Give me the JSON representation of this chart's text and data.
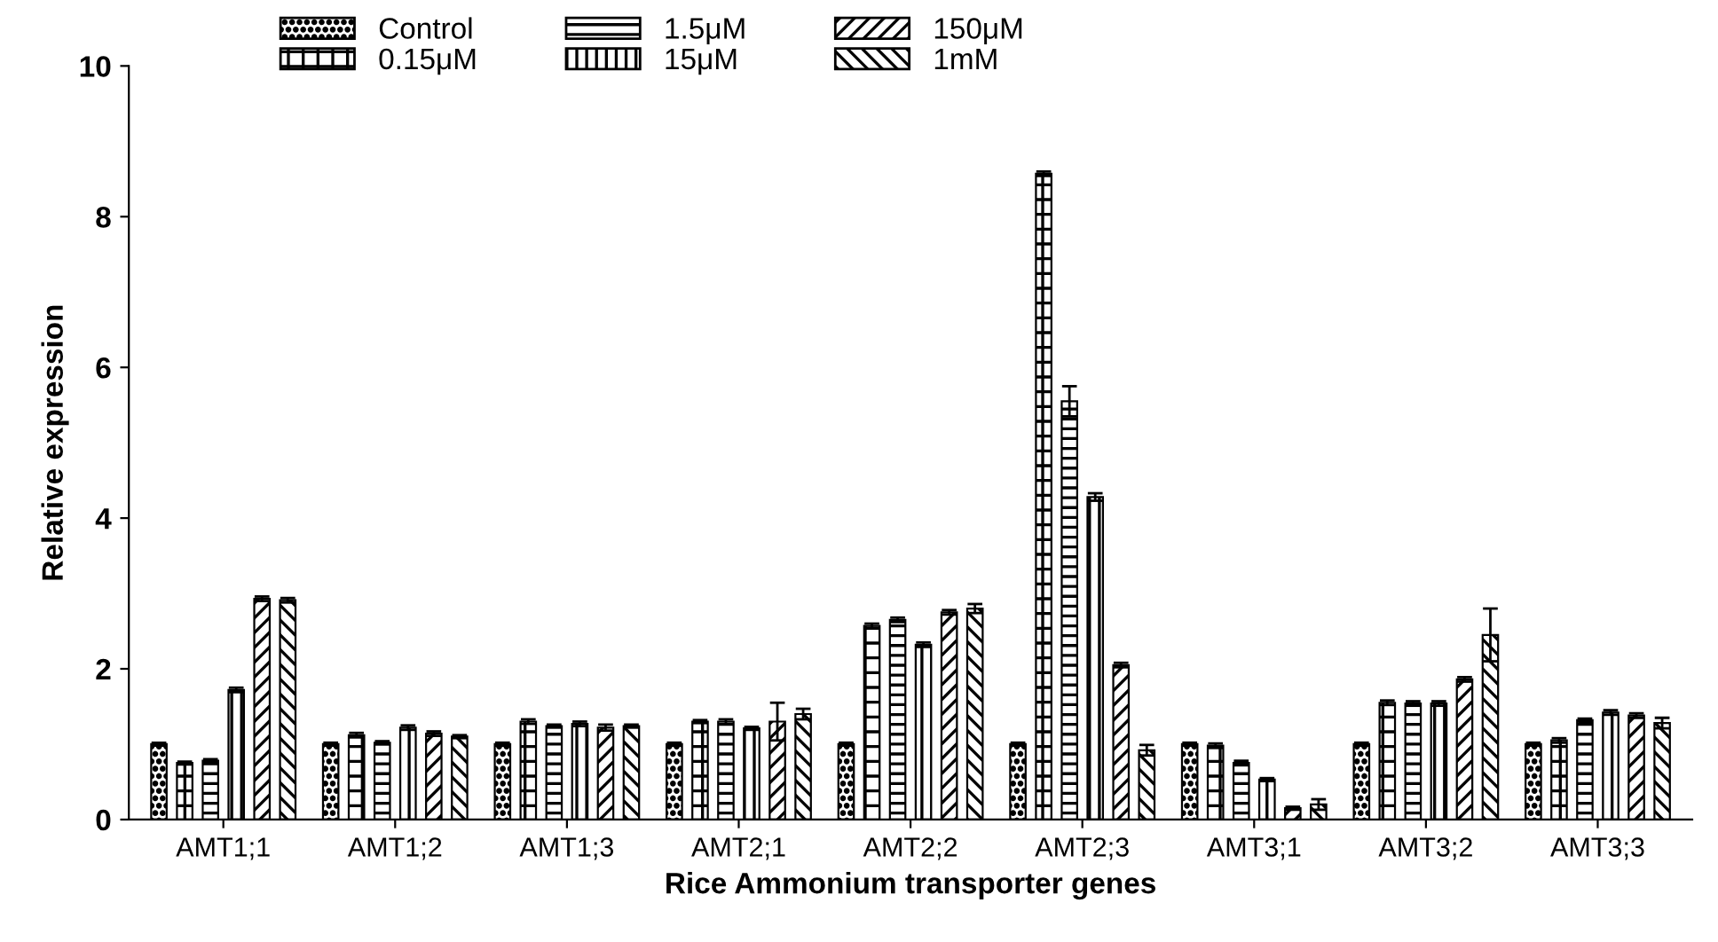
{
  "chart_data": {
    "type": "bar",
    "xlabel": "Rice Ammonium transporter genes",
    "ylabel": "Relative expression",
    "categories": [
      "AMT1;1",
      "AMT1;2",
      "AMT1;3",
      "AMT2;1",
      "AMT2;2",
      "AMT2;3",
      "AMT3;1",
      "AMT3;2",
      "AMT3;3"
    ],
    "series": [
      {
        "name": "Control",
        "color": "#000000",
        "values": [
          1.0,
          1.0,
          1.0,
          1.0,
          1.0,
          1.0,
          1.0,
          1.0,
          1.0
        ],
        "errors": [
          0.02,
          0.02,
          0.02,
          0.02,
          0.02,
          0.02,
          0.02,
          0.02,
          0.02
        ]
      },
      {
        "name": "0.15μM",
        "color": "#000000",
        "values": [
          0.75,
          1.12,
          1.3,
          1.3,
          2.57,
          8.57,
          0.98,
          1.55,
          1.05
        ],
        "errors": [
          0.02,
          0.03,
          0.03,
          0.02,
          0.03,
          0.03,
          0.03,
          0.03,
          0.03
        ]
      },
      {
        "name": "1.5μM",
        "color": "#000000",
        "values": [
          0.78,
          1.02,
          1.24,
          1.3,
          2.65,
          5.55,
          0.75,
          1.54,
          1.32
        ],
        "errors": [
          0.02,
          0.02,
          0.02,
          0.03,
          0.03,
          0.2,
          0.03,
          0.03,
          0.02
        ]
      },
      {
        "name": "15μM",
        "color": "#000000",
        "values": [
          1.72,
          1.22,
          1.27,
          1.21,
          2.32,
          4.28,
          0.53,
          1.54,
          1.42
        ],
        "errors": [
          0.03,
          0.03,
          0.03,
          0.02,
          0.03,
          0.05,
          0.02,
          0.03,
          0.03
        ]
      },
      {
        "name": "150μM",
        "color": "#000000",
        "values": [
          2.93,
          1.14,
          1.22,
          1.3,
          2.75,
          2.05,
          0.15,
          1.86,
          1.38
        ],
        "errors": [
          0.03,
          0.03,
          0.04,
          0.25,
          0.03,
          0.03,
          0.02,
          0.03,
          0.03
        ]
      },
      {
        "name": "1mM",
        "color": "#000000",
        "values": [
          2.91,
          1.1,
          1.24,
          1.4,
          2.8,
          0.92,
          0.2,
          2.45,
          1.28
        ],
        "errors": [
          0.03,
          0.02,
          0.02,
          0.07,
          0.06,
          0.07,
          0.07,
          0.35,
          0.07
        ]
      }
    ],
    "ylim": [
      0,
      10
    ],
    "yticks": [
      0,
      2,
      4,
      6,
      8,
      10
    ],
    "grid": false,
    "legend": "top left"
  }
}
